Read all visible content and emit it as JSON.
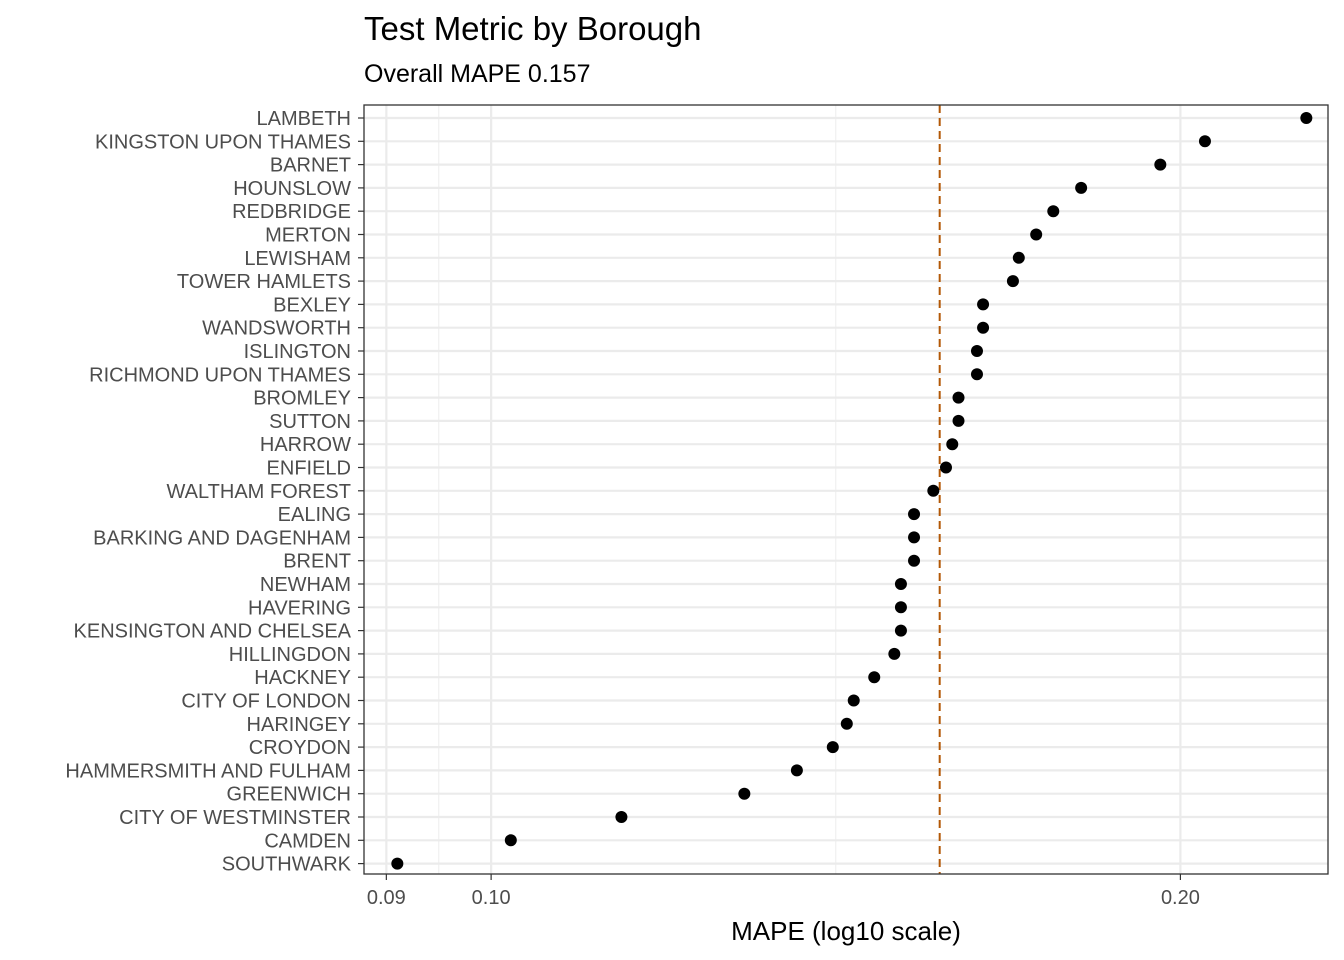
{
  "chart_data": {
    "type": "scatter",
    "title": "Test Metric by Borough",
    "subtitle": "Overall MAPE 0.157",
    "xlabel": "MAPE (log10 scale)",
    "ylabel": "",
    "x_scale": "log10",
    "xlim": [
      0.088,
      0.232
    ],
    "x_ticks": [
      {
        "value": 0.09,
        "label": "0.09"
      },
      {
        "value": 0.1,
        "label": "0.10"
      },
      {
        "value": 0.2,
        "label": "0.20"
      }
    ],
    "reference_line": {
      "value": 0.157,
      "style": "dashed",
      "color": "#b35806"
    },
    "grid": true,
    "point_color": "#000000",
    "categories": [
      "LAMBETH",
      "KINGSTON UPON THAMES",
      "BARNET",
      "HOUNSLOW",
      "REDBRIDGE",
      "MERTON",
      "LEWISHAM",
      "TOWER HAMLETS",
      "BEXLEY",
      "WANDSWORTH",
      "ISLINGTON",
      "RICHMOND UPON THAMES",
      "BROMLEY",
      "SUTTON",
      "HARROW",
      "ENFIELD",
      "WALTHAM FOREST",
      "EALING",
      "BARKING AND DAGENHAM",
      "BRENT",
      "NEWHAM",
      "HAVERING",
      "KENSINGTON AND CHELSEA",
      "HILLINGDON",
      "HACKNEY",
      "CITY OF LONDON",
      "HARINGEY",
      "CROYDON",
      "HAMMERSMITH AND FULHAM",
      "GREENWICH",
      "CITY OF WESTMINSTER",
      "CAMDEN",
      "SOUTHWARK"
    ],
    "values": [
      0.227,
      0.205,
      0.196,
      0.181,
      0.176,
      0.173,
      0.17,
      0.169,
      0.164,
      0.164,
      0.163,
      0.163,
      0.16,
      0.16,
      0.159,
      0.158,
      0.156,
      0.153,
      0.153,
      0.153,
      0.151,
      0.151,
      0.151,
      0.15,
      0.147,
      0.144,
      0.143,
      0.141,
      0.136,
      0.129,
      0.114,
      0.102,
      0.091
    ]
  }
}
